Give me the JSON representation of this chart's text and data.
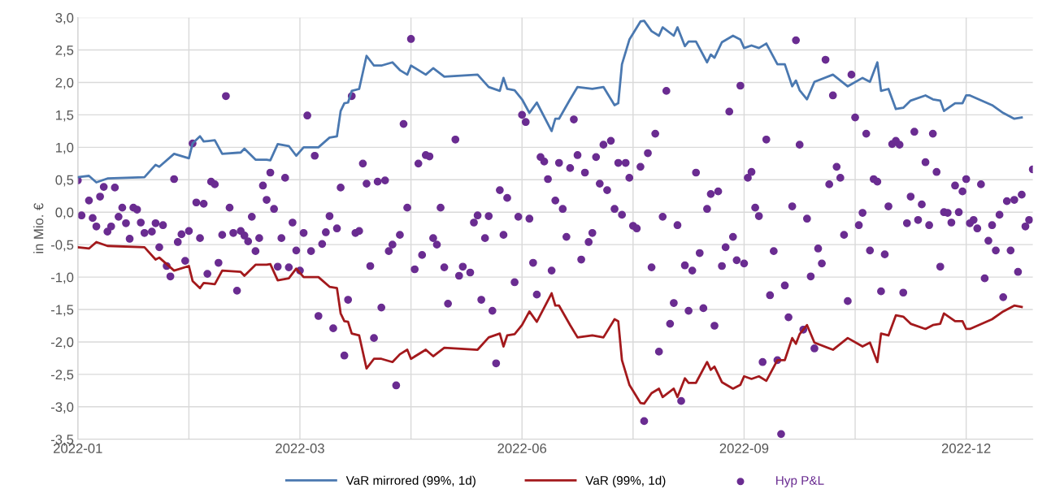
{
  "chart_data": {
    "type": "line",
    "ylabel": "in Mio. €",
    "ylim": [
      -3.5,
      3.0
    ],
    "categories": [
      "2022-01",
      null,
      null,
      null,
      null,
      null,
      null,
      null,
      null,
      null,
      null,
      null,
      null,
      null,
      null,
      null,
      null,
      null,
      null,
      null,
      null,
      null,
      null,
      null,
      null,
      null,
      null,
      null,
      null,
      null,
      null,
      null,
      null,
      null,
      null,
      null,
      null,
      null,
      null,
      null,
      null,
      null,
      null,
      null,
      null,
      null,
      null,
      null,
      null,
      null,
      null,
      null,
      null,
      null,
      null,
      null,
      null,
      null,
      null,
      null,
      "2022-03",
      null,
      null,
      null,
      null,
      null,
      null,
      null,
      null,
      null,
      null,
      null,
      null,
      null,
      null,
      null,
      null,
      null,
      null,
      null,
      null,
      null,
      null,
      null,
      null,
      null,
      null,
      null,
      null,
      null,
      null,
      null,
      null,
      null,
      null,
      null,
      null,
      null,
      null,
      null,
      null,
      null,
      null,
      null,
      null,
      null,
      null,
      null,
      null,
      null,
      null,
      null,
      null,
      null,
      null,
      null,
      null,
      null,
      null,
      null,
      "2022-06",
      null,
      null,
      null,
      null,
      null,
      null,
      null,
      null,
      null,
      null,
      null,
      null,
      null,
      null,
      null,
      null,
      null,
      null,
      null,
      null,
      null,
      null,
      null,
      null,
      null,
      null,
      null,
      null,
      null,
      null,
      null,
      null,
      null,
      null,
      null,
      null,
      null,
      null,
      null,
      null,
      null,
      null,
      null,
      null,
      null,
      null,
      null,
      null,
      null,
      null,
      null,
      null,
      null,
      null,
      null,
      null,
      null,
      null,
      null,
      "2022-09",
      null,
      null,
      null,
      null,
      null,
      null,
      null,
      null,
      null,
      null,
      null,
      null,
      null,
      null,
      null,
      null,
      null,
      null,
      null,
      null,
      null,
      null,
      null,
      null,
      null,
      null,
      null,
      null,
      null,
      null,
      null,
      null,
      null,
      null,
      null,
      null,
      null,
      null,
      null,
      null,
      null,
      null,
      null,
      null,
      null,
      null,
      null,
      null,
      null,
      null,
      null,
      null,
      null,
      null,
      null,
      null,
      null,
      null,
      null,
      "2022-12",
      null,
      null,
      null,
      null,
      null,
      null,
      null,
      null,
      null,
      null,
      null,
      null,
      null,
      null,
      null,
      null,
      null,
      null
    ],
    "yticks": [
      {
        "value": 3.0,
        "label": "3,0"
      },
      {
        "value": 2.5,
        "label": "2,5"
      },
      {
        "value": 2.0,
        "label": "2,0"
      },
      {
        "value": 1.5,
        "label": "1,5"
      },
      {
        "value": 1.0,
        "label": "1,0"
      },
      {
        "value": 0.5,
        "label": "0,5"
      },
      {
        "value": 0.0,
        "label": "0,0"
      },
      {
        "value": -0.5,
        "label": "-0,5"
      },
      {
        "value": -1.0,
        "label": "-1,0"
      },
      {
        "value": -1.5,
        "label": "-1,5"
      },
      {
        "value": -2.0,
        "label": "-2,0"
      },
      {
        "value": -2.5,
        "label": "-2,5"
      },
      {
        "value": -3.0,
        "label": "-3,0"
      },
      {
        "value": -3.5,
        "label": "-3,5"
      }
    ],
    "grid": true,
    "legend": "bottom",
    "series": [
      {
        "name": "VaR mirrored (99%, 1d)",
        "color": "#4a78b0",
        "marker": "none",
        "line_style": "solid",
        "values": [
          0.54,
          null,
          null,
          0.56,
          null,
          0.46,
          null,
          null,
          0.52,
          null,
          null,
          null,
          null,
          null,
          null,
          null,
          null,
          null,
          0.54,
          null,
          null,
          0.73,
          0.7,
          null,
          null,
          null,
          0.9,
          null,
          null,
          null,
          0.83,
          1.06,
          null,
          1.17,
          1.09,
          null,
          null,
          1.11,
          null,
          0.9,
          null,
          null,
          null,
          null,
          0.92,
          0.98,
          null,
          null,
          0.81,
          null,
          null,
          0.81,
          0.8,
          null,
          1.05,
          null,
          null,
          1.02,
          null,
          0.87,
          null,
          1.0,
          null,
          null,
          null,
          1.0,
          null,
          null,
          1.15,
          null,
          1.17,
          1.56,
          1.68,
          1.69,
          1.87,
          null,
          1.9,
          null,
          2.41,
          null,
          2.26,
          null,
          2.26,
          null,
          null,
          2.31,
          null,
          2.19,
          null,
          2.12,
          2.26,
          null,
          null,
          null,
          2.12,
          null,
          2.22,
          null,
          null,
          2.09,
          null,
          null,
          null,
          null,
          null,
          null,
          null,
          null,
          2.12,
          null,
          null,
          1.93,
          null,
          null,
          1.87,
          2.07,
          1.9,
          null,
          1.88,
          null,
          1.74,
          null,
          1.53,
          null,
          1.69,
          null,
          null,
          null,
          1.25,
          1.44,
          1.44,
          null,
          null,
          1.74,
          null,
          1.93,
          null,
          null,
          null,
          1.9,
          null,
          null,
          1.93,
          null,
          null,
          1.65,
          1.68,
          2.28,
          null,
          2.66,
          null,
          null,
          2.94,
          2.95,
          null,
          2.79,
          null,
          2.72,
          2.85,
          null,
          null,
          2.72,
          2.85,
          null,
          2.56,
          2.63,
          null,
          2.63,
          null,
          null,
          2.31,
          2.43,
          2.38,
          null,
          2.62,
          null,
          null,
          2.72,
          null,
          2.66,
          2.53,
          null,
          2.57,
          null,
          2.53,
          null,
          2.6,
          null,
          null,
          2.28,
          null,
          2.28,
          null,
          1.94,
          2.03,
          1.88,
          null,
          1.74,
          null,
          2.01,
          null,
          null,
          null,
          null,
          2.12,
          null,
          null,
          null,
          1.94,
          null,
          null,
          null,
          2.07,
          null,
          2.01,
          null,
          2.31,
          1.87,
          null,
          1.9,
          null,
          1.59,
          null,
          1.61,
          null,
          1.72,
          null,
          null,
          null,
          1.8,
          null,
          1.74,
          null,
          1.72,
          1.56,
          null,
          null,
          1.68,
          null,
          1.68,
          1.8,
          1.8,
          null,
          null,
          null,
          null,
          null,
          1.65,
          null,
          null,
          1.53,
          null,
          null,
          1.44,
          null,
          1.46,
          null,
          null,
          null
        ]
      },
      {
        "name": "VaR (99%, 1d)",
        "color": "#a3191c",
        "marker": "none",
        "line_style": "solid",
        "values": [
          -0.54,
          null,
          null,
          -0.56,
          null,
          -0.46,
          null,
          null,
          -0.52,
          null,
          null,
          null,
          null,
          null,
          null,
          null,
          null,
          null,
          -0.54,
          null,
          null,
          -0.73,
          -0.7,
          null,
          null,
          null,
          -0.9,
          null,
          null,
          null,
          -0.83,
          -1.06,
          null,
          -1.17,
          -1.09,
          null,
          null,
          -1.11,
          null,
          -0.9,
          null,
          null,
          null,
          null,
          -0.92,
          -0.98,
          null,
          null,
          -0.81,
          null,
          null,
          -0.81,
          -0.8,
          null,
          -1.05,
          null,
          null,
          -1.02,
          null,
          -0.87,
          null,
          -1.0,
          null,
          null,
          null,
          -1.0,
          null,
          null,
          -1.15,
          null,
          -1.17,
          -1.56,
          -1.68,
          -1.69,
          -1.87,
          null,
          -1.9,
          null,
          -2.41,
          null,
          -2.26,
          null,
          -2.26,
          null,
          null,
          -2.31,
          null,
          -2.19,
          null,
          -2.12,
          -2.26,
          null,
          null,
          null,
          -2.12,
          null,
          -2.22,
          null,
          null,
          -2.09,
          null,
          null,
          null,
          null,
          null,
          null,
          null,
          null,
          -2.12,
          null,
          null,
          -1.93,
          null,
          null,
          -1.87,
          -2.07,
          -1.9,
          null,
          -1.88,
          null,
          -1.74,
          null,
          -1.53,
          null,
          -1.69,
          null,
          null,
          null,
          -1.25,
          -1.44,
          -1.44,
          null,
          null,
          -1.74,
          null,
          -1.93,
          null,
          null,
          null,
          -1.9,
          null,
          null,
          -1.93,
          null,
          null,
          -1.65,
          -1.68,
          -2.28,
          null,
          -2.66,
          null,
          null,
          -2.94,
          -2.95,
          null,
          -2.79,
          null,
          -2.72,
          -2.85,
          null,
          null,
          -2.72,
          -2.85,
          null,
          -2.56,
          -2.63,
          null,
          -2.63,
          null,
          null,
          -2.31,
          -2.43,
          -2.38,
          null,
          -2.62,
          null,
          null,
          -2.72,
          null,
          -2.66,
          -2.53,
          null,
          -2.57,
          null,
          -2.53,
          null,
          -2.6,
          null,
          null,
          -2.28,
          null,
          -2.28,
          null,
          -1.94,
          -2.03,
          -1.88,
          null,
          -1.74,
          null,
          -2.01,
          null,
          null,
          null,
          null,
          -2.12,
          null,
          null,
          null,
          -1.94,
          null,
          null,
          null,
          -2.07,
          null,
          -2.01,
          null,
          -2.31,
          -1.87,
          null,
          -1.9,
          null,
          -1.59,
          null,
          -1.61,
          null,
          -1.72,
          null,
          null,
          null,
          -1.8,
          null,
          -1.74,
          null,
          -1.72,
          -1.56,
          null,
          null,
          -1.68,
          null,
          -1.68,
          -1.8,
          -1.8,
          null,
          null,
          null,
          null,
          null,
          -1.65,
          null,
          null,
          -1.53,
          null,
          null,
          -1.44,
          null,
          -1.46,
          null,
          null,
          null
        ]
      },
      {
        "name": "Hyp P&L",
        "type": "scatter",
        "color": "#6a2c91",
        "marker": "circle",
        "values": [
          0.49,
          -0.05,
          null,
          0.18,
          -0.09,
          -0.22,
          0.24,
          0.39,
          -0.3,
          -0.22,
          0.38,
          -0.07,
          0.07,
          -0.17,
          -0.41,
          0.07,
          0.04,
          -0.16,
          -0.32,
          null,
          -0.3,
          -0.17,
          -0.54,
          -0.2,
          -0.83,
          -0.99,
          0.51,
          -0.46,
          -0.34,
          -0.75,
          -0.29,
          1.06,
          0.15,
          -0.4,
          0.13,
          -0.95,
          0.47,
          0.43,
          -0.78,
          -0.35,
          1.79,
          0.07,
          -0.32,
          -1.21,
          -0.29,
          -0.36,
          -0.45,
          -0.07,
          -0.6,
          -0.4,
          0.41,
          0.19,
          0.61,
          0.05,
          -0.84,
          -0.4,
          0.53,
          -0.85,
          -0.16,
          -0.59,
          -0.9,
          -0.32,
          1.49,
          -0.6,
          0.87,
          -1.6,
          -0.49,
          -0.31,
          -0.06,
          -1.79,
          -0.25,
          0.38,
          -2.21,
          -1.35,
          1.79,
          -0.32,
          -0.29,
          0.75,
          0.44,
          -0.83,
          -1.94,
          0.47,
          -1.47,
          0.49,
          -0.6,
          -0.5,
          -2.67,
          -0.35,
          1.36,
          0.07,
          2.67,
          -0.88,
          0.75,
          -0.66,
          0.88,
          0.86,
          -0.4,
          -0.5,
          0.07,
          -0.85,
          -1.41,
          null,
          1.12,
          -0.98,
          -0.84,
          null,
          -0.93,
          -0.16,
          -0.05,
          -1.35,
          -0.4,
          -0.06,
          -1.52,
          -2.33,
          0.34,
          -0.35,
          0.22,
          null,
          -1.08,
          -0.07,
          1.5,
          1.39,
          -0.1,
          -0.78,
          -1.27,
          0.85,
          0.78,
          0.51,
          -0.9,
          0.18,
          0.76,
          0.05,
          -0.38,
          0.68,
          1.43,
          0.88,
          -0.73,
          0.61,
          -0.46,
          -0.32,
          0.85,
          0.44,
          1.04,
          0.34,
          1.1,
          0.05,
          0.76,
          -0.04,
          0.76,
          0.53,
          -0.21,
          -0.25,
          0.7,
          -3.22,
          0.91,
          -0.85,
          1.21,
          -2.15,
          -0.07,
          1.87,
          -1.72,
          -1.4,
          -0.2,
          -2.91,
          -0.82,
          -1.52,
          -0.9,
          0.61,
          -0.63,
          -1.48,
          0.05,
          0.28,
          -1.75,
          0.32,
          -0.83,
          -0.54,
          1.55,
          -0.38,
          -0.74,
          1.95,
          -0.79,
          0.53,
          0.62,
          0.07,
          -0.06,
          -2.31,
          1.12,
          -1.28,
          -0.6,
          -2.28,
          -3.42,
          -1.13,
          -1.62,
          0.09,
          2.65,
          1.04,
          -1.81,
          -0.1,
          -0.99,
          -2.1,
          -0.56,
          -0.79,
          2.35,
          0.43,
          1.8,
          0.7,
          0.53,
          -0.35,
          -1.37,
          2.12,
          1.46,
          -0.2,
          -0.01,
          1.21,
          -0.59,
          0.51,
          0.47,
          -1.22,
          -0.65,
          0.09,
          1.05,
          1.1,
          1.04,
          -1.24,
          -0.17,
          0.24,
          1.24,
          -0.12,
          0.12,
          0.77,
          -0.2,
          1.21,
          0.62,
          -0.84,
          0.0,
          -0.01,
          -0.16,
          0.41,
          0.0,
          0.32,
          0.51,
          -0.17,
          -0.12,
          -0.25,
          0.43,
          -1.02,
          -0.44,
          -0.2,
          -0.59,
          -0.04,
          -1.31,
          0.17,
          -0.59,
          0.19,
          -0.92,
          0.27,
          -0.22,
          -0.12,
          0.66
        ]
      }
    ]
  }
}
